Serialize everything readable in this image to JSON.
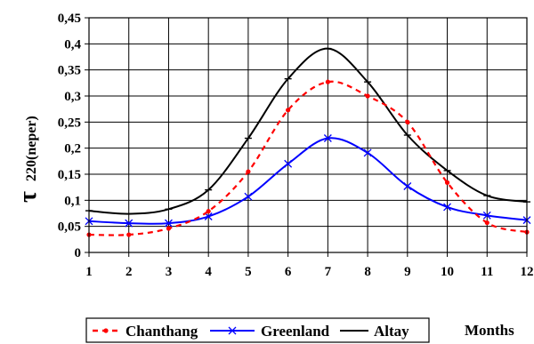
{
  "chart_data": {
    "type": "line",
    "xlabel": "Months",
    "ylabel_symbol": "τ",
    "ylabel_sub": "220(neper)",
    "x": [
      1,
      2,
      3,
      4,
      5,
      6,
      7,
      8,
      9,
      10,
      11,
      12
    ],
    "xlim": [
      1,
      12
    ],
    "ylim": [
      0,
      0.45
    ],
    "xticks": [
      "1",
      "2",
      "3",
      "4",
      "5",
      "6",
      "7",
      "8",
      "9",
      "10",
      "11",
      "12"
    ],
    "yticks": [
      "0",
      "0,05",
      "0,1",
      "0,15",
      "0,2",
      "0,25",
      "0,3",
      "0,35",
      "0,4",
      "0,45"
    ],
    "grid": true,
    "legend_position": "bottom-left",
    "series": [
      {
        "name": "Chanthang",
        "color": "#ff0000",
        "style": "dashed",
        "marker": "dot",
        "values": [
          0.034,
          0.034,
          0.046,
          0.079,
          0.155,
          0.273,
          0.327,
          0.3,
          0.25,
          0.134,
          0.057,
          0.039
        ]
      },
      {
        "name": "Greenland",
        "color": "#0000ff",
        "style": "solid",
        "marker": "x",
        "values": [
          0.06,
          0.056,
          0.056,
          0.069,
          0.107,
          0.17,
          0.219,
          0.191,
          0.127,
          0.087,
          0.071,
          0.062
        ]
      },
      {
        "name": "Altay",
        "color": "#000000",
        "style": "solid",
        "marker": "dash",
        "values": [
          0.08,
          0.074,
          0.083,
          0.12,
          0.219,
          0.333,
          0.391,
          0.327,
          0.225,
          0.157,
          0.109,
          0.097
        ]
      }
    ]
  }
}
